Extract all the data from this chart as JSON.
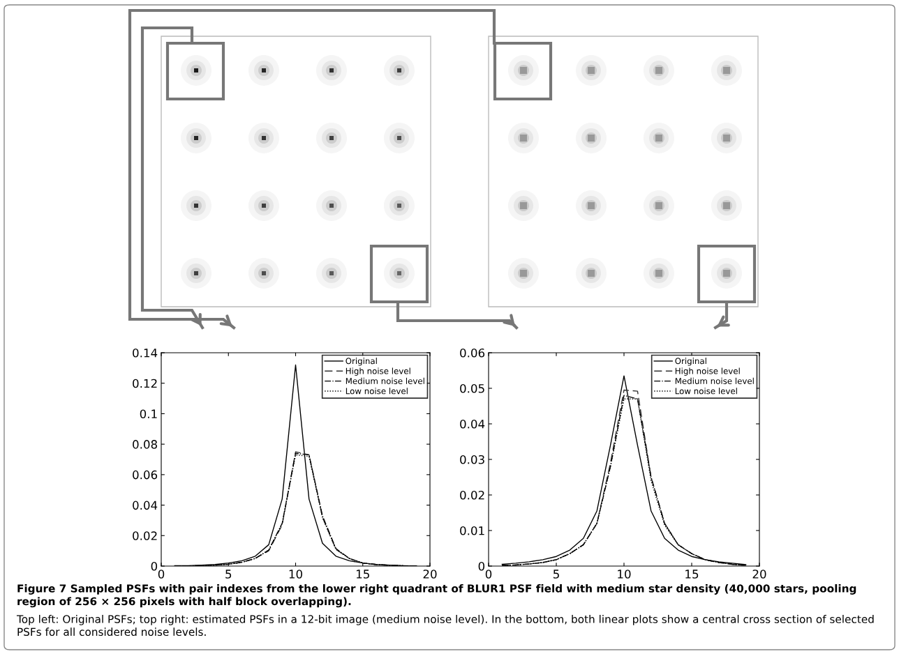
{
  "chart_data": [
    {
      "type": "line",
      "x": [
        1,
        2,
        3,
        4,
        5,
        6,
        7,
        8,
        9,
        10,
        11,
        12,
        13,
        14,
        15,
        16,
        17,
        18,
        19
      ],
      "xlim": [
        0,
        20
      ],
      "xticks": [
        0,
        5,
        10,
        15,
        20
      ],
      "ylim": [
        0,
        0.14
      ],
      "yticks": [
        0,
        0.02,
        0.04,
        0.06,
        0.08,
        0.1,
        0.12,
        0.14
      ],
      "legend": "top right",
      "grid": false,
      "series": [
        {
          "name": "Original",
          "color": "#000000",
          "line_style": "solid",
          "values": [
            0.0002,
            0.0003,
            0.0006,
            0.001,
            0.002,
            0.0035,
            0.0065,
            0.014,
            0.044,
            0.132,
            0.044,
            0.015,
            0.0065,
            0.0035,
            0.002,
            0.001,
            0.0006,
            0.0003,
            0.0002
          ]
        },
        {
          "name": "High noise level",
          "color": "#333333",
          "line_style": "dashed",
          "values": [
            0,
            0.0001,
            0.0003,
            0.0006,
            0.0012,
            0.0025,
            0.005,
            0.01,
            0.027,
            0.075,
            0.073,
            0.032,
            0.011,
            0.005,
            0.002,
            0.001,
            0.0005,
            0.0002,
            0.0001
          ]
        },
        {
          "name": "Medium noise level",
          "color": "#000000",
          "line_style": "dashdot",
          "values": [
            0,
            0.0001,
            0.0003,
            0.0006,
            0.0012,
            0.0025,
            0.005,
            0.0105,
            0.028,
            0.074,
            0.073,
            0.033,
            0.0115,
            0.005,
            0.002,
            0.001,
            0.0005,
            0.0002,
            0.0001
          ]
        },
        {
          "name": "Low noise level",
          "color": "#000000",
          "line_style": "dotted",
          "values": [
            0,
            0.0001,
            0.0003,
            0.0006,
            0.0012,
            0.0025,
            0.005,
            0.0105,
            0.028,
            0.073,
            0.072,
            0.032,
            0.011,
            0.005,
            0.002,
            0.001,
            0.0005,
            0.0002,
            0.0001
          ]
        }
      ],
      "annotations": [
        "Figure 7 Sampled PSFs with pair indexes from the lower right quadrant of BLUR1 PSF field with medium star density (40,000 stars, pooling region of 256 × 256 pixels with half block overlapping).",
        "Top left: Original PSFs; top right: estimated PSFs in a 12-bit image (medium noise level). In the bottom, both linear plots show a central cross section of selected PSFs for all considered noise levels."
      ]
    },
    {
      "type": "line",
      "x": [
        1,
        2,
        3,
        4,
        5,
        6,
        7,
        8,
        9,
        10,
        11,
        12,
        13,
        14,
        15,
        16,
        17,
        18,
        19
      ],
      "xlim": [
        0,
        20
      ],
      "xticks": [
        0,
        5,
        10,
        15,
        20
      ],
      "ylim": [
        0,
        0.06
      ],
      "yticks": [
        0,
        0.01,
        0.02,
        0.03,
        0.04,
        0.05,
        0.06
      ],
      "legend": "top right",
      "grid": false,
      "series": [
        {
          "name": "Original",
          "color": "#000000",
          "line_style": "solid",
          "values": [
            0.0005,
            0.0008,
            0.0012,
            0.0018,
            0.0027,
            0.0045,
            0.0078,
            0.0155,
            0.034,
            0.0535,
            0.034,
            0.0155,
            0.0078,
            0.0045,
            0.0027,
            0.0018,
            0.0012,
            0.0008,
            0.0004
          ]
        },
        {
          "name": "High noise level",
          "color": "#333333",
          "line_style": "dashed",
          "values": [
            0.0002,
            0.0003,
            0.0006,
            0.001,
            0.0018,
            0.0035,
            0.006,
            0.012,
            0.029,
            0.0495,
            0.0492,
            0.025,
            0.012,
            0.006,
            0.0035,
            0.0018,
            0.001,
            0.0005,
            0.0002
          ]
        },
        {
          "name": "Medium noise level",
          "color": "#000000",
          "line_style": "dashdot",
          "values": [
            0.0002,
            0.0003,
            0.0006,
            0.001,
            0.0018,
            0.0035,
            0.006,
            0.012,
            0.028,
            0.048,
            0.047,
            0.025,
            0.012,
            0.006,
            0.0035,
            0.0018,
            0.001,
            0.0005,
            0.0002
          ]
        },
        {
          "name": "Low noise level",
          "color": "#000000",
          "line_style": "dotted",
          "values": [
            0.0002,
            0.0003,
            0.0006,
            0.001,
            0.0018,
            0.0035,
            0.006,
            0.012,
            0.028,
            0.047,
            0.047,
            0.024,
            0.0115,
            0.006,
            0.0035,
            0.0018,
            0.001,
            0.0005,
            0.0002
          ]
        }
      ]
    }
  ]
}
